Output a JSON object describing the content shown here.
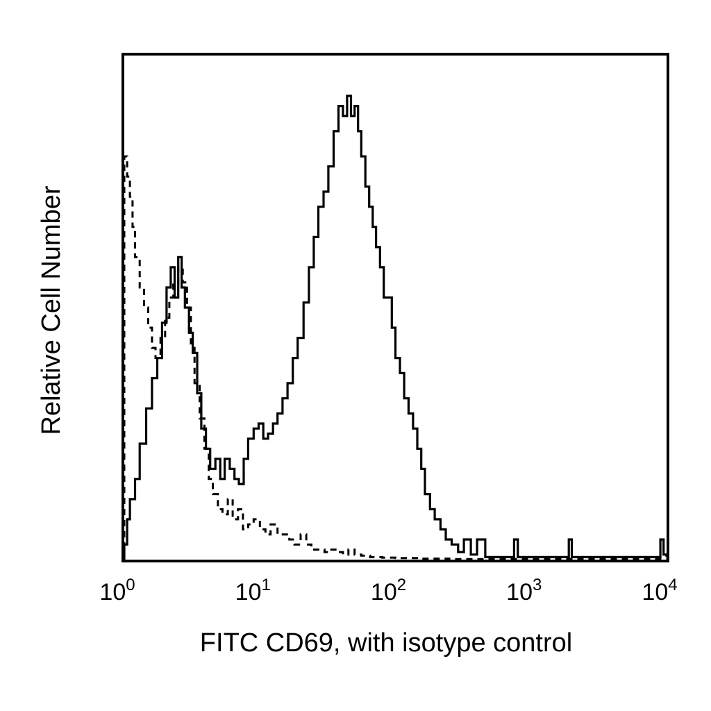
{
  "chart_data": {
    "type": "line",
    "title": "",
    "xlabel": "FITC CD69, with isotype control",
    "ylabel": "Relative Cell Number",
    "x_scale": "log",
    "xlim": [
      1,
      10000
    ],
    "ylim": [
      0,
      100
    ],
    "grid": false,
    "legend": "none",
    "x_ticks": [
      {
        "value": 1,
        "base": "10",
        "exp": "0"
      },
      {
        "value": 10,
        "base": "10",
        "exp": "1"
      },
      {
        "value": 100,
        "base": "10",
        "exp": "2"
      },
      {
        "value": 1000,
        "base": "10",
        "exp": "3"
      },
      {
        "value": 10000,
        "base": "10",
        "exp": "4"
      }
    ],
    "series": [
      {
        "style": "solid",
        "color": "#000000",
        "x": [
          1.0,
          1.05,
          1.1,
          1.2,
          1.3,
          1.45,
          1.6,
          1.75,
          1.9,
          2.05,
          2.2,
          2.35,
          2.5,
          2.65,
          2.8,
          3.0,
          3.2,
          3.45,
          3.7,
          4.0,
          4.3,
          4.7,
          5.1,
          5.5,
          6.0,
          6.5,
          7.0,
          7.6,
          8.2,
          9.0,
          9.8,
          10.6,
          11.5,
          12.5,
          13.5,
          14.7,
          16.0,
          17.5,
          19.0,
          21.0,
          23.0,
          25.0,
          27.0,
          29.5,
          32.0,
          35.0,
          38.0,
          41.0,
          44.0,
          47.0,
          50.0,
          53.0,
          56.0,
          60.0,
          64.0,
          68.0,
          72.0,
          77.0,
          82.0,
          88.0,
          94.0,
          100.0,
          108.0,
          116.0,
          125.0,
          135.0,
          145.0,
          155.0,
          165.0,
          180.0,
          195.0,
          215.0,
          235.0,
          260.0,
          290.0,
          320.0,
          360.0,
          400.0,
          460.0,
          550.0,
          700.0,
          750.0,
          800.0,
          1200.0,
          1800.0,
          1900.0,
          2000.0,
          3000.0,
          5000.0,
          8500.0,
          9000.0,
          9500.0,
          10000.0
        ],
        "y": [
          3,
          8,
          12,
          16,
          23,
          30,
          36,
          40,
          47,
          54,
          58,
          52,
          60,
          54,
          50,
          45,
          41,
          33,
          26,
          22,
          18,
          20,
          16,
          20,
          18,
          16,
          15,
          20,
          24,
          26,
          27,
          24,
          25,
          27,
          29,
          32,
          35,
          40,
          44,
          51,
          58,
          64,
          70,
          73,
          78,
          85,
          90,
          88,
          92,
          88,
          90,
          85,
          80,
          74,
          70,
          66,
          62,
          58,
          52,
          52,
          46,
          40,
          37,
          32,
          29,
          26,
          22,
          18,
          13,
          10,
          8,
          6,
          4,
          3,
          1.5,
          4,
          1,
          4,
          0.5,
          0.5,
          0.5,
          4,
          0.5,
          0.5,
          0.5,
          4,
          0.5,
          0.5,
          0.5,
          0.5,
          4,
          1,
          0.5
        ]
      },
      {
        "style": "dashed",
        "color": "#000000",
        "x": [
          1.0,
          1.05,
          1.1,
          1.15,
          1.2,
          1.3,
          1.4,
          1.5,
          1.6,
          1.7,
          1.85,
          2.0,
          2.15,
          2.3,
          2.5,
          2.7,
          2.9,
          3.1,
          3.3,
          3.6,
          3.9,
          4.2,
          4.5,
          4.9,
          5.3,
          5.8,
          6.3,
          6.9,
          7.5,
          8.2,
          9.0,
          10.0,
          11.0,
          12.0,
          13.5,
          15.0,
          16.5,
          18.0,
          20.0,
          22.0,
          24.0,
          27.0,
          30.0,
          33.0,
          37.0,
          41.0,
          45.0,
          50.0,
          56.0,
          65.0,
          80.0,
          100.0,
          150.0,
          250.0
        ],
        "y": [
          80,
          76,
          72,
          66,
          60,
          54,
          50,
          46,
          42,
          40,
          44,
          48,
          52,
          55,
          58,
          55,
          50,
          42,
          35,
          28,
          22,
          16,
          13,
          10,
          9,
          12,
          8,
          10,
          6,
          7,
          8,
          6,
          5,
          7,
          5,
          5,
          4,
          3,
          5,
          3,
          2,
          2,
          1.5,
          2,
          1.5,
          1,
          2,
          1,
          0.8,
          0.5,
          0.4,
          0.3,
          0.2,
          0.1
        ]
      }
    ]
  }
}
